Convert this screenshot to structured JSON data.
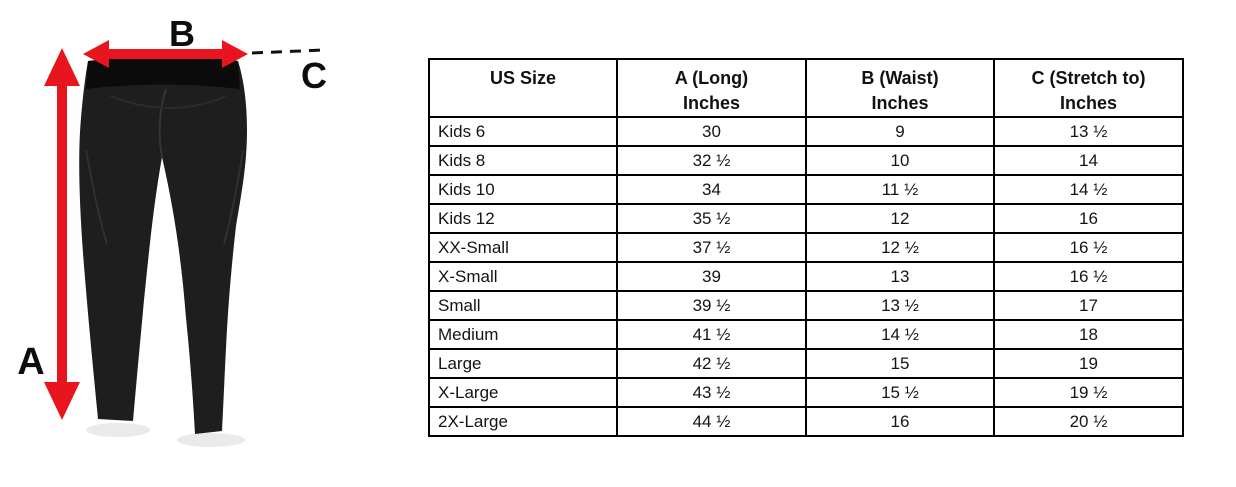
{
  "diagram": {
    "labels": {
      "a": "A",
      "b": "B",
      "c": "C"
    },
    "arrow_color": "#e8151e",
    "pants_color": "#1e1e1e",
    "waistband_color": "#0b0b0b"
  },
  "size_chart": {
    "columns": [
      {
        "label": "US Size",
        "sublabel": ""
      },
      {
        "label": "A (Long)",
        "sublabel": "Inches"
      },
      {
        "label": "B (Waist)",
        "sublabel": "Inches"
      },
      {
        "label": "C (Stretch to)",
        "sublabel": "Inches"
      }
    ],
    "rows": [
      [
        "Kids 6",
        "30",
        "9",
        "13 ½"
      ],
      [
        "Kids 8",
        "32 ½",
        "10",
        "14"
      ],
      [
        "Kids 10",
        "34",
        "11 ½",
        "14 ½"
      ],
      [
        "Kids 12",
        "35 ½",
        "12",
        "16"
      ],
      [
        "XX-Small",
        "37 ½",
        "12 ½",
        "16 ½"
      ],
      [
        "X-Small",
        "39",
        "13",
        "16 ½"
      ],
      [
        "Small",
        "39 ½",
        "13 ½",
        "17"
      ],
      [
        "Medium",
        "41 ½",
        "14 ½",
        "18"
      ],
      [
        "Large",
        "42 ½",
        "15",
        "19"
      ],
      [
        "X-Large",
        "43 ½",
        "15 ½",
        "19 ½"
      ],
      [
        "2X-Large",
        "44 ½",
        "16",
        "20 ½"
      ]
    ]
  }
}
